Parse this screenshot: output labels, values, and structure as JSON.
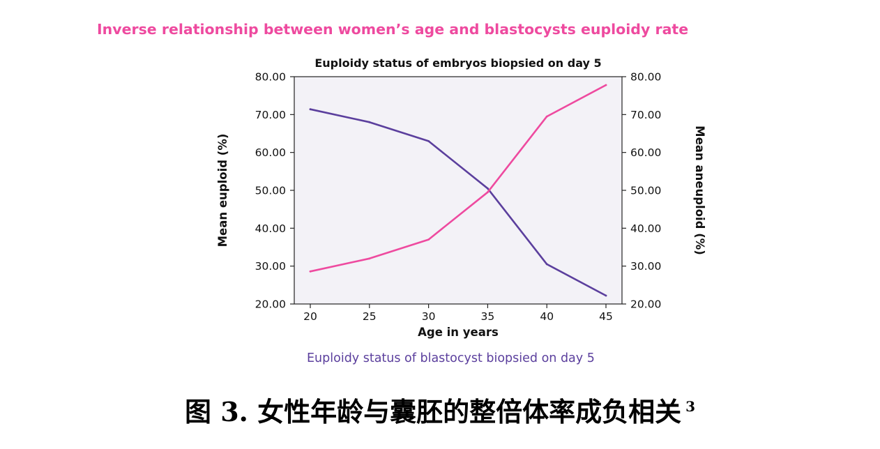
{
  "heading": "Inverse relationship between women’s age and blastocysts euploidy rate",
  "subcaption": "Euploidy status of blastocyst biopsied on day 5",
  "figure_caption": {
    "label": "图 3.  女性年龄与囊胚的整倍体率成负相关",
    "ref": "3"
  },
  "colors": {
    "euploid": "#5b3f9d",
    "aneuploid": "#ee4a9f",
    "plot_bg": "#f3f2f7",
    "heading": "#ee4a9f"
  },
  "chart_data": {
    "type": "line",
    "title": "Euploidy status of embryos biopsied on day 5",
    "xlabel": "Age in years",
    "ylabel_left": "Mean euploid (%)",
    "ylabel_right": "Mean aneuploid (%)",
    "x": [
      20,
      25,
      30,
      35,
      40,
      45
    ],
    "x_tick_labels": [
      "20",
      "25",
      "30",
      "35",
      "40",
      "45"
    ],
    "ylim": [
      20,
      80
    ],
    "y_ticks": [
      20,
      30,
      40,
      50,
      60,
      70,
      80
    ],
    "y_tick_labels": [
      "20.00",
      "30.00",
      "40.00",
      "50.00",
      "60.00",
      "70.00",
      "80.00"
    ],
    "grid": false,
    "series": [
      {
        "key": "euploid",
        "axis": "left",
        "values": [
          71.4,
          68.0,
          63.0,
          50.5,
          30.5,
          22.2
        ]
      },
      {
        "key": "aneuploid",
        "axis": "right",
        "values": [
          28.6,
          32.0,
          37.0,
          49.5,
          69.5,
          77.8
        ]
      }
    ]
  }
}
